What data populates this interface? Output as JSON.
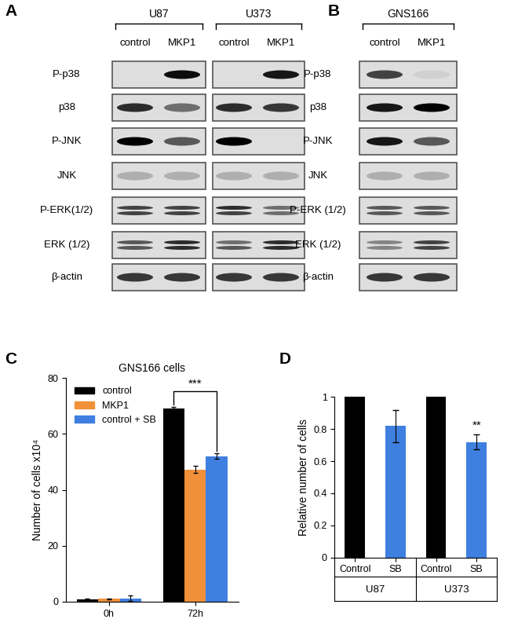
{
  "blots": [
    {
      "panel_label": "A",
      "groups": [
        {
          "name": "U87",
          "lanes": [
            "control",
            "MKP1"
          ]
        },
        {
          "name": "U373",
          "lanes": [
            "control",
            "MKP1"
          ]
        }
      ],
      "rows": [
        {
          "label": "P-p38",
          "bands": [
            [
              [
                0.0
              ],
              [
                0.95
              ]
            ],
            [
              [
                0.0
              ],
              [
                0.9
              ]
            ]
          ]
        },
        {
          "label": "p38",
          "bands": [
            [
              [
                0.8
              ],
              [
                0.5
              ]
            ],
            [
              [
                0.8
              ],
              [
                0.75
              ]
            ]
          ]
        },
        {
          "label": "P-JNK",
          "bands": [
            [
              [
                1.0
              ],
              [
                0.6
              ]
            ],
            [
              [
                1.0
              ],
              [
                0.0
              ]
            ]
          ]
        },
        {
          "label": "JNK",
          "bands": [
            [
              [
                0.2
              ],
              [
                0.2
              ]
            ],
            [
              [
                0.2
              ],
              [
                0.2
              ]
            ]
          ]
        },
        {
          "label": "P-ERK(1/2)",
          "bands": [
            [
              [
                0.7,
                0.7
              ],
              [
                0.7,
                0.7
              ]
            ],
            [
              [
                0.8,
                0.7
              ],
              [
                0.5,
                0.5
              ]
            ]
          ]
        },
        {
          "label": "ERK (1/2)",
          "bands": [
            [
              [
                0.6,
                0.6
              ],
              [
                0.8,
                0.8
              ]
            ],
            [
              [
                0.5,
                0.6
              ],
              [
                0.8,
                0.8
              ]
            ]
          ]
        },
        {
          "label": "β-actin",
          "bands": [
            [
              [
                0.75
              ],
              [
                0.75
              ]
            ],
            [
              [
                0.75
              ],
              [
                0.75
              ]
            ]
          ]
        }
      ]
    },
    {
      "panel_label": "B",
      "groups": [
        {
          "name": "GNS166",
          "lanes": [
            "control",
            "MKP1"
          ]
        }
      ],
      "rows": [
        {
          "label": "P-p38",
          "bands": [
            [
              [
                0.7
              ],
              [
                0.05
              ]
            ]
          ]
        },
        {
          "label": "p38",
          "bands": [
            [
              [
                0.9
              ],
              [
                1.0
              ]
            ]
          ]
        },
        {
          "label": "P-JNK",
          "bands": [
            [
              [
                0.9
              ],
              [
                0.6
              ]
            ]
          ]
        },
        {
          "label": "JNK",
          "bands": [
            [
              [
                0.2
              ],
              [
                0.2
              ]
            ]
          ]
        },
        {
          "label": "P-ERK (1/2)",
          "bands": [
            [
              [
                0.6,
                0.6
              ],
              [
                0.6,
                0.6
              ]
            ]
          ]
        },
        {
          "label": "ERK (1/2)",
          "bands": [
            [
              [
                0.4,
                0.4
              ],
              [
                0.7,
                0.7
              ]
            ]
          ]
        },
        {
          "label": "β-actin",
          "bands": [
            [
              [
                0.75
              ],
              [
                0.75
              ]
            ]
          ]
        }
      ]
    }
  ],
  "chart_data": [
    {
      "panel_label": "C",
      "type": "bar",
      "title": "GNS166 cells",
      "categories": [
        "0h",
        "72h"
      ],
      "series": [
        {
          "name": "control",
          "color": "#000000",
          "values": [
            0.8,
            69
          ],
          "errors": [
            0.2,
            0.8
          ]
        },
        {
          "name": "MKP1",
          "color": "#f0913a",
          "values": [
            1.0,
            47.3
          ],
          "errors": [
            0.1,
            1.2
          ]
        },
        {
          "name": "control + SB",
          "color": "#3f7fe0",
          "values": [
            1.2,
            52
          ],
          "errors": [
            0.9,
            1.0
          ]
        }
      ],
      "y_label": "Number of cells x10⁴",
      "ylim": [
        0,
        80
      ],
      "yticks": [
        0,
        20,
        40,
        60,
        80
      ],
      "legend": "upper left",
      "annotations": [
        {
          "text": "***",
          "category": "72h",
          "from": "control",
          "to": "control + SB"
        }
      ]
    },
    {
      "panel_label": "D",
      "type": "bar",
      "categories": [
        "Control",
        "SB",
        "Control",
        "SB"
      ],
      "groups": [
        {
          "name": "U87",
          "size": 2
        },
        {
          "name": "U373",
          "size": 2
        }
      ],
      "values": [
        1,
        0.82,
        1,
        0.72
      ],
      "errors": [
        null,
        0.1,
        null,
        0.045
      ],
      "colors": [
        "#000000",
        "#3f7fe0",
        "#000000",
        "#3f7fe0"
      ],
      "y_label": "Relative number of cells",
      "ylim": [
        0,
        1
      ],
      "yticks": [
        0,
        0.2,
        0.4,
        0.6,
        0.8,
        1
      ],
      "annotations": [
        {
          "text": "**",
          "index": 3
        }
      ]
    }
  ]
}
